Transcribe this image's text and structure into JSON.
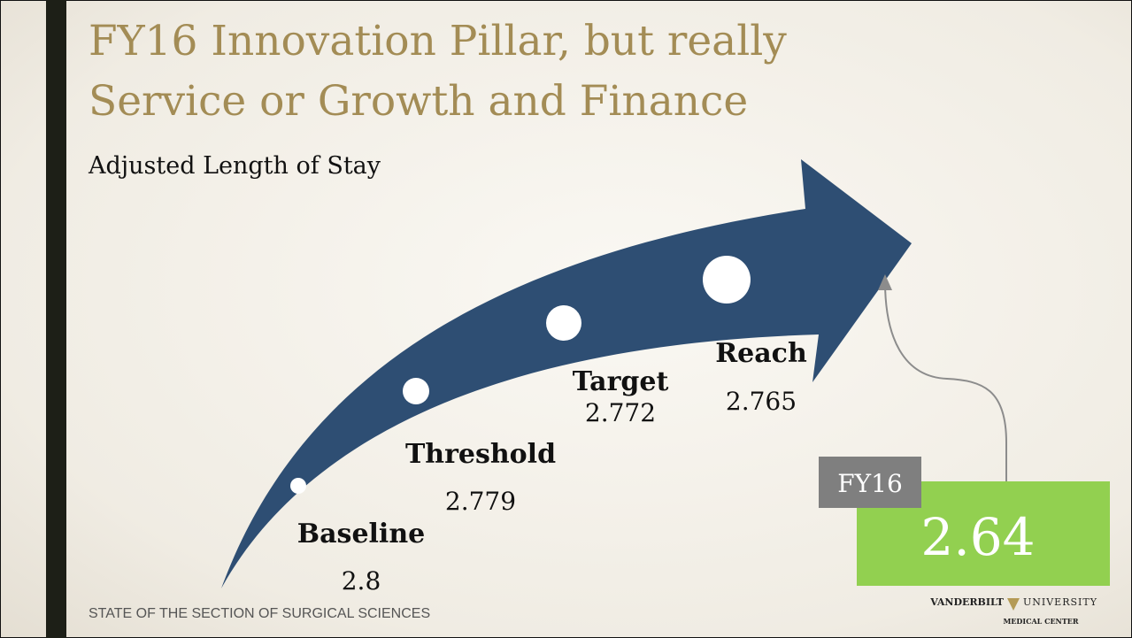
{
  "title": {
    "line1": "FY16 Innovation Pillar, but really",
    "line2": "Service or Growth and Finance"
  },
  "subtitle": "Adjusted Length of Stay",
  "milestones": [
    {
      "label": "Baseline",
      "value": "2.8"
    },
    {
      "label": "Threshold",
      "value": "2.779"
    },
    {
      "label": "Target",
      "value": "2.772"
    },
    {
      "label": "Reach",
      "value": "2.765"
    }
  ],
  "result": {
    "label": "FY16",
    "value": "2.64"
  },
  "footer": "STATE OF THE SECTION OF SURGICAL SCIENCES",
  "logo": {
    "left": "VANDERBILT",
    "right": "UNIVERSITY",
    "bottom": "MEDICAL CENTER"
  }
}
